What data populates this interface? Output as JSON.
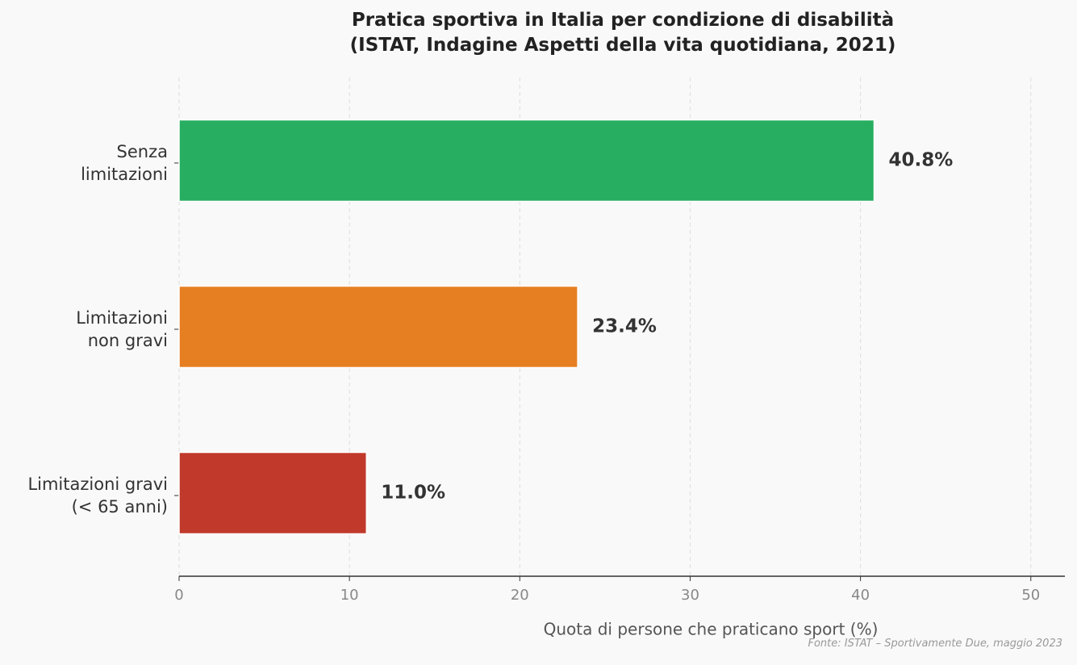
{
  "chart_data": {
    "type": "barh",
    "title": "Pratica sportiva in Italia per condizione di disabilità\n(ISTAT, Indagine Aspetti della vita quotidiana, 2021)",
    "categories": [
      "Senza\nlimitazioni",
      "Limitazioni\nnon gravi",
      "Limitazioni gravi\n(< 65 anni)"
    ],
    "values": [
      40.8,
      23.4,
      11.0
    ],
    "value_labels": [
      "40.8%",
      "23.4%",
      "11.0%"
    ],
    "colors": [
      "#27ae60",
      "#e67e22",
      "#c0392b"
    ],
    "xlabel": "Quota di persone che praticano sport (%)",
    "xlim": [
      0,
      52
    ],
    "xticks": [
      0,
      10,
      20,
      30,
      40,
      50
    ],
    "grid": true,
    "source": "Fonte: ISTAT – Sportivamente Due, maggio 2023"
  }
}
